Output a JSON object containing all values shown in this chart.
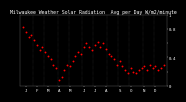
{
  "title": "Milwaukee Weather Solar Radiation",
  "subtitle": "Avg per Day W/m2/minute",
  "background_color": "#000000",
  "dot_color": "#ff0000",
  "grid_color": "#666666",
  "ylim": [
    0,
    1.0
  ],
  "xlim": [
    0,
    53
  ],
  "ylabel_fontsize": 3.0,
  "xlabel_fontsize": 3.0,
  "title_fontsize": 3.5,
  "x_ticks": [
    2,
    6,
    10,
    14,
    18,
    23,
    27,
    31,
    36,
    40,
    45,
    49
  ],
  "x_tick_labels": [
    "J",
    "F",
    "M",
    "A",
    "M",
    "J",
    "J",
    "A",
    "S",
    "O",
    "N",
    "D"
  ],
  "y_ticks": [
    0.0,
    0.2,
    0.4,
    0.6,
    0.8,
    1.0
  ],
  "y_tick_labels": [
    "0",
    "",
    "0.4",
    "",
    "0.8",
    "1"
  ],
  "vlines": [
    4.5,
    8.5,
    13.5,
    17.5,
    22.5,
    26.5,
    31.5,
    35.5,
    39.5,
    44.5,
    48.5
  ],
  "weeks": [
    1,
    2,
    3,
    4,
    5,
    6,
    7,
    8,
    9,
    10,
    11,
    12,
    13,
    14,
    15,
    16,
    17,
    18,
    19,
    20,
    21,
    22,
    23,
    24,
    25,
    26,
    27,
    28,
    29,
    30,
    31,
    32,
    33,
    34,
    35,
    36,
    37,
    38,
    39,
    40,
    41,
    42,
    43,
    44,
    45,
    46,
    47,
    48,
    49,
    50,
    51,
    52
  ],
  "values": [
    0.82,
    0.75,
    0.68,
    0.72,
    0.65,
    0.58,
    0.5,
    0.55,
    0.48,
    0.42,
    0.38,
    0.3,
    0.25,
    0.08,
    0.12,
    0.22,
    0.3,
    0.28,
    0.35,
    0.42,
    0.48,
    0.45,
    0.55,
    0.6,
    0.55,
    0.5,
    0.58,
    0.62,
    0.55,
    0.6,
    0.52,
    0.45,
    0.42,
    0.38,
    0.3,
    0.35,
    0.28,
    0.22,
    0.18,
    0.25,
    0.2,
    0.18,
    0.22,
    0.25,
    0.28,
    0.22,
    0.3,
    0.25,
    0.28,
    0.22,
    0.25,
    0.3
  ],
  "marker_size": 1.8,
  "text_color": "#ffffff"
}
